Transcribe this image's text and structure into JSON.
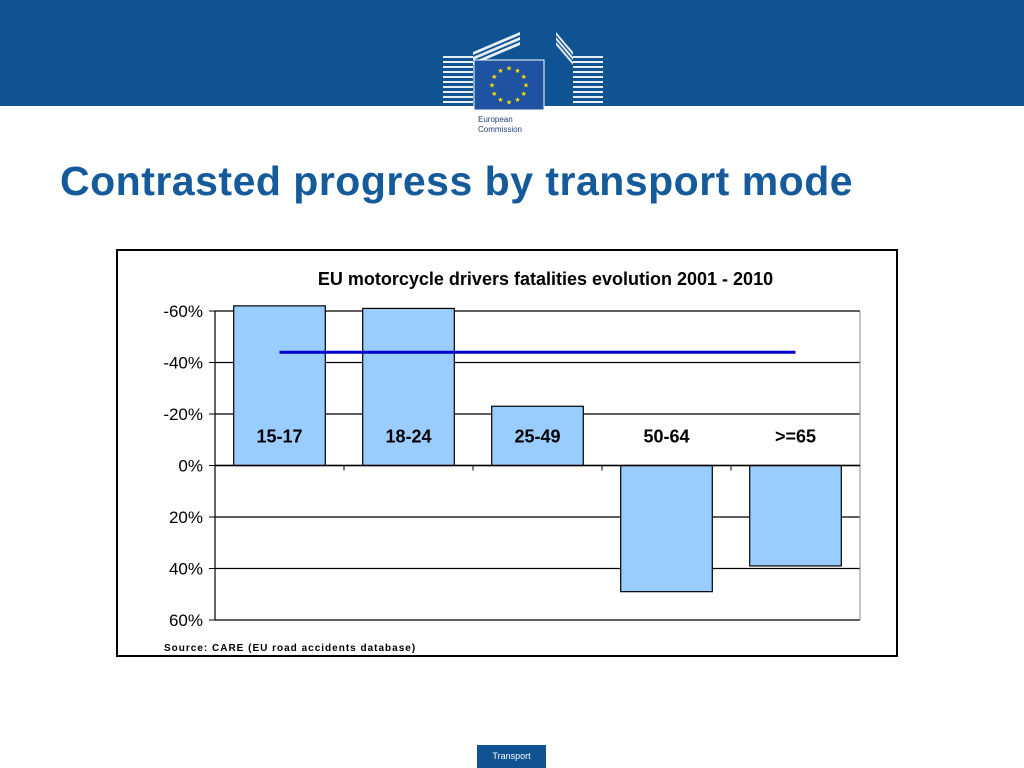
{
  "header": {
    "logo_line1": "European",
    "logo_line2": "Commission",
    "colors": {
      "band": "#0f5393",
      "flag": "#1f52a0",
      "stars": "#ffdd00"
    }
  },
  "slide": {
    "title": "Contrasted progress by transport mode"
  },
  "chart_data": {
    "type": "bar",
    "title": "EU motorcycle drivers fatalities evolution 2001 - 2010",
    "source": "Source: CARE (EU road accidents database)",
    "categories": [
      "15-17",
      "18-24",
      "25-49",
      "50-64",
      ">=65"
    ],
    "series": [
      {
        "values": [
          -62,
          -61,
          -23,
          49,
          39
        ],
        "color": "#99ccff"
      },
      {
        "type": "line",
        "values": [
          -44,
          -44,
          -44,
          -44,
          -44
        ],
        "color": "#0000cc"
      }
    ],
    "ylim": [
      -60,
      60
    ],
    "y_inverted": true,
    "yticks": [
      -60,
      -40,
      -20,
      0,
      20,
      40,
      60
    ],
    "ytick_labels": [
      "-60%",
      "-40%",
      "-20%",
      "0%",
      "20%",
      "40%",
      "60%"
    ],
    "grid": true
  },
  "footer": {
    "label": "Transport"
  }
}
